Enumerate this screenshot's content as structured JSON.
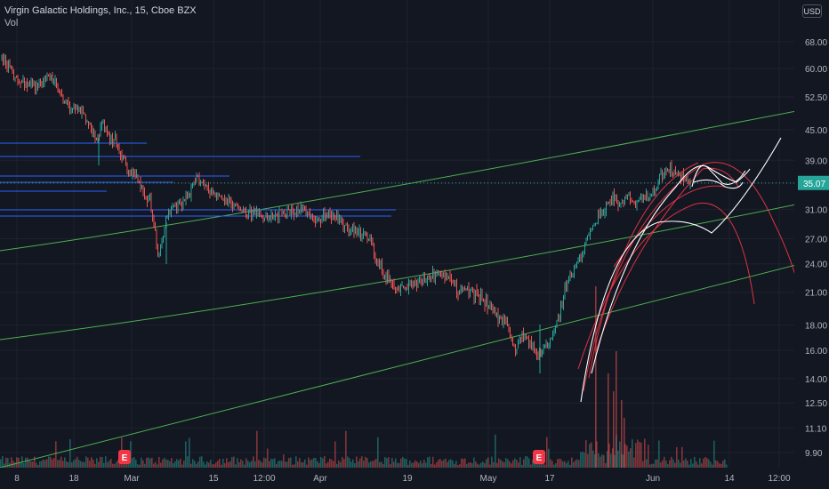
{
  "header": {
    "symbol_line": "Virgin Galactic Holdings, Inc., 15, Cboe BZX",
    "indicator": "Vol"
  },
  "currency": "USD",
  "colors": {
    "background": "#131722",
    "grid": "#1e222d",
    "axis_text": "#b2b5be",
    "candle_up": "#26a69a",
    "candle_down": "#ef5350",
    "trend_green": "#4caf50",
    "level_blue": "#2962ff",
    "arc_red": "#f23645",
    "arc_white": "#ffffff",
    "price_tag": "#26a69a",
    "earnings_badge": "#f23645"
  },
  "chart_data": {
    "type": "candlestick",
    "symbol": "Virgin Galactic Holdings, Inc.",
    "interval": "15",
    "exchange": "Cboe BZX",
    "y_scale": "log",
    "y_ticks": [
      68.0,
      60.0,
      52.5,
      45.0,
      39.0,
      35.0,
      31.0,
      27.0,
      24.0,
      21.0,
      18.0,
      16.0,
      14.0,
      12.5,
      11.1,
      9.9
    ],
    "y_tick_labels": [
      "68.00",
      "60.00",
      "52.50",
      "45.00",
      "39.00",
      "35.00",
      "31.00",
      "27.00",
      "24.00",
      "21.00",
      "18.00",
      "16.00",
      "14.00",
      "12.50",
      "11.10",
      "9.90"
    ],
    "x_ticks": [
      "8",
      "18",
      "Mar",
      "15",
      "12:00",
      "Apr",
      "19",
      "May",
      "17",
      "Jun",
      "14",
      "12:00"
    ],
    "last_price": 35.07,
    "last_price_label": "35.07",
    "price_path": [
      [
        0,
        63.0
      ],
      [
        0.02,
        57.0
      ],
      [
        0.05,
        55.0
      ],
      [
        0.06,
        58.5
      ],
      [
        0.08,
        51.0
      ],
      [
        0.1,
        49.5
      ],
      [
        0.12,
        44.0
      ],
      [
        0.13,
        45.5
      ],
      [
        0.14,
        42.5
      ],
      [
        0.145,
        43.0
      ],
      [
        0.16,
        37.5
      ],
      [
        0.17,
        36.0
      ],
      [
        0.185,
        33.0
      ],
      [
        0.19,
        32.0
      ],
      [
        0.2,
        25.0
      ],
      [
        0.205,
        27.0
      ],
      [
        0.21,
        30.0
      ],
      [
        0.225,
        31.5
      ],
      [
        0.24,
        33.5
      ],
      [
        0.25,
        36.0
      ],
      [
        0.265,
        34.0
      ],
      [
        0.28,
        32.5
      ],
      [
        0.3,
        31.5
      ],
      [
        0.32,
        30.5
      ],
      [
        0.34,
        29.5
      ],
      [
        0.36,
        30.5
      ],
      [
        0.38,
        31.0
      ],
      [
        0.4,
        29.5
      ],
      [
        0.42,
        30.5
      ],
      [
        0.44,
        28.5
      ],
      [
        0.46,
        27.5
      ],
      [
        0.47,
        27.0
      ],
      [
        0.48,
        24.0
      ],
      [
        0.495,
        22.0
      ],
      [
        0.51,
        21.5
      ],
      [
        0.53,
        22.0
      ],
      [
        0.55,
        22.5
      ],
      [
        0.565,
        23.0
      ],
      [
        0.58,
        21.5
      ],
      [
        0.6,
        21.0
      ],
      [
        0.615,
        20.5
      ],
      [
        0.63,
        19.0
      ],
      [
        0.645,
        18.0
      ],
      [
        0.655,
        16.0
      ],
      [
        0.665,
        17.5
      ],
      [
        0.675,
        16.5
      ],
      [
        0.685,
        15.5
      ],
      [
        0.7,
        17.0
      ],
      [
        0.71,
        18.5
      ],
      [
        0.72,
        21.5
      ],
      [
        0.74,
        25.0
      ],
      [
        0.75,
        28.0
      ],
      [
        0.765,
        30.5
      ],
      [
        0.78,
        33.0
      ],
      [
        0.79,
        31.5
      ],
      [
        0.8,
        33.0
      ],
      [
        0.81,
        32.0
      ],
      [
        0.82,
        32.5
      ],
      [
        0.83,
        33.5
      ],
      [
        0.84,
        36.0
      ],
      [
        0.85,
        37.5
      ],
      [
        0.86,
        36.5
      ],
      [
        0.87,
        36.0
      ],
      [
        0.88,
        35.07
      ]
    ],
    "earnings_markers": [
      {
        "label": "E"
      },
      {
        "label": "E"
      }
    ]
  }
}
